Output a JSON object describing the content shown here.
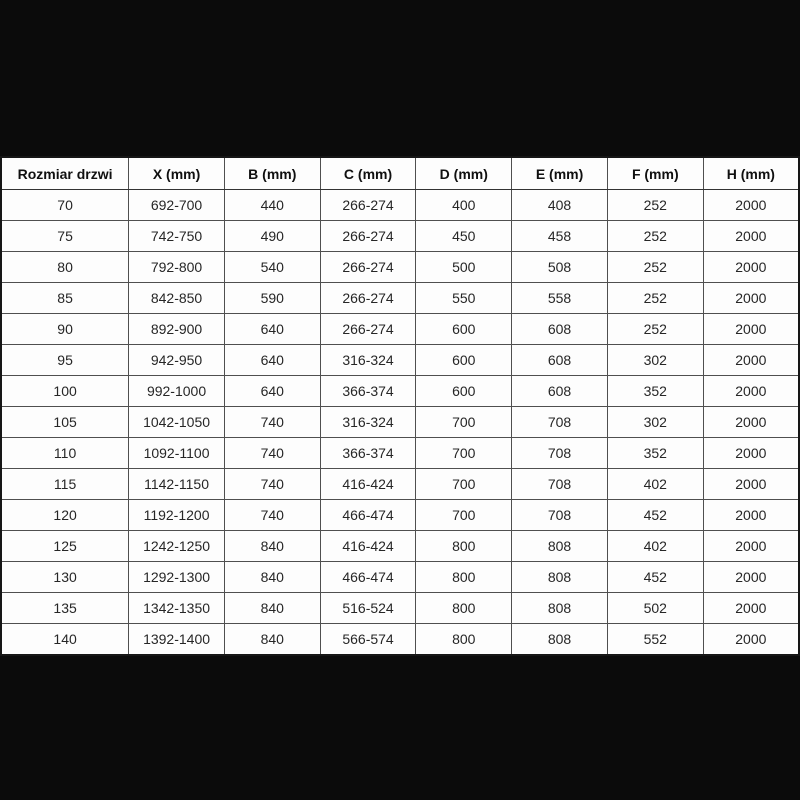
{
  "page": {
    "background_color": "#0b0b0b",
    "table_background_color": "#fdfdfd",
    "border_color": "#4f4f4f",
    "header_text_color": "#101010",
    "cell_text_color": "#262626"
  },
  "chart_data": {
    "type": "table",
    "title": "",
    "columns": [
      "Rozmiar drzwi",
      "X (mm)",
      "B (mm)",
      "C (mm)",
      "D (mm)",
      "E (mm)",
      "F (mm)",
      "H (mm)"
    ],
    "rows": [
      [
        "70",
        "692-700",
        "440",
        "266-274",
        "400",
        "408",
        "252",
        "2000"
      ],
      [
        "75",
        "742-750",
        "490",
        "266-274",
        "450",
        "458",
        "252",
        "2000"
      ],
      [
        "80",
        "792-800",
        "540",
        "266-274",
        "500",
        "508",
        "252",
        "2000"
      ],
      [
        "85",
        "842-850",
        "590",
        "266-274",
        "550",
        "558",
        "252",
        "2000"
      ],
      [
        "90",
        "892-900",
        "640",
        "266-274",
        "600",
        "608",
        "252",
        "2000"
      ],
      [
        "95",
        "942-950",
        "640",
        "316-324",
        "600",
        "608",
        "302",
        "2000"
      ],
      [
        "100",
        "992-1000",
        "640",
        "366-374",
        "600",
        "608",
        "352",
        "2000"
      ],
      [
        "105",
        "1042-1050",
        "740",
        "316-324",
        "700",
        "708",
        "302",
        "2000"
      ],
      [
        "110",
        "1092-1100",
        "740",
        "366-374",
        "700",
        "708",
        "352",
        "2000"
      ],
      [
        "115",
        "1142-1150",
        "740",
        "416-424",
        "700",
        "708",
        "402",
        "2000"
      ],
      [
        "120",
        "1192-1200",
        "740",
        "466-474",
        "700",
        "708",
        "452",
        "2000"
      ],
      [
        "125",
        "1242-1250",
        "840",
        "416-424",
        "800",
        "808",
        "402",
        "2000"
      ],
      [
        "130",
        "1292-1300",
        "840",
        "466-474",
        "800",
        "808",
        "452",
        "2000"
      ],
      [
        "135",
        "1342-1350",
        "840",
        "516-524",
        "800",
        "808",
        "502",
        "2000"
      ],
      [
        "140",
        "1392-1400",
        "840",
        "566-574",
        "800",
        "808",
        "552",
        "2000"
      ]
    ],
    "layout": {
      "legend": "none",
      "grid": "all-cell-borders",
      "first_column_wider": true
    }
  }
}
